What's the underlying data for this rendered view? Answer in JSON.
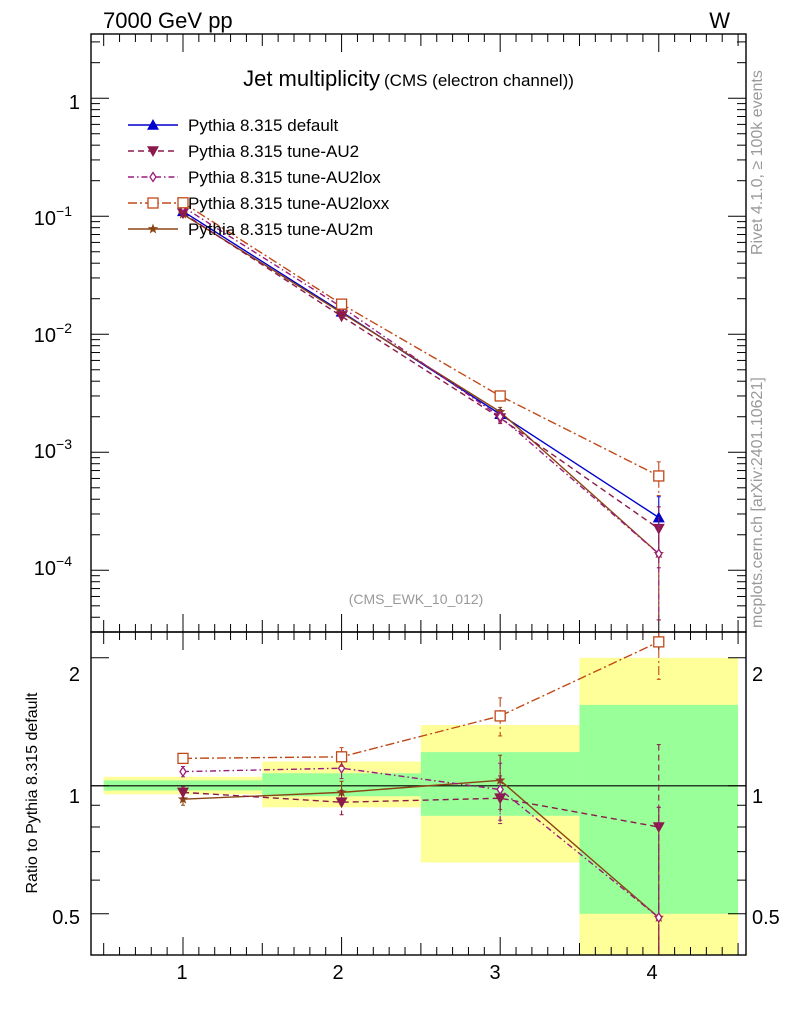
{
  "header": {
    "energy_label": "7000 GeV pp",
    "process_label": "W",
    "rivet_label": "Rivet 4.1.0, ≥ 100k events",
    "mcplots_label": "mcplots.cern.ch [arXiv:2401.10621]",
    "analysis_label": "(CMS_EWK_10_012)"
  },
  "chart_data": {
    "type": "line",
    "title": "Jet multiplicity",
    "subtitle": "(CMS (electron channel))",
    "xlabel": "",
    "ylabel": "",
    "ratio_ylabel": "Ratio to Pythia 8.315 default",
    "x": [
      1,
      2,
      3,
      4
    ],
    "xlim": [
      0.42,
      4.55
    ],
    "ylim": [
      3e-05,
      3.5
    ],
    "ratio_ylim": [
      0.4,
      2.3
    ],
    "x_ticks": [
      "1",
      "2",
      "3",
      "4"
    ],
    "y_ticks": [
      {
        "base": "1",
        "exp": ""
      },
      {
        "base": "10",
        "exp": "−1"
      },
      {
        "base": "10",
        "exp": "−2"
      },
      {
        "base": "10",
        "exp": "−3"
      },
      {
        "base": "10",
        "exp": "−4"
      }
    ],
    "ratio_ticks": [
      "2",
      "1",
      "0.5"
    ],
    "legend_position": "top-left",
    "series": [
      {
        "name": "Pythia 8.315 default",
        "color": "#0000cc",
        "dash": "solid",
        "marker": "triangle-up",
        "values": [
          0.11,
          0.0155,
          0.0021,
          0.00028
        ],
        "errors": [
          0.003,
          0.0006,
          0.0002,
          0.00014
        ],
        "ratio": [
          1.0,
          1.0,
          1.0,
          1.0
        ],
        "ratio_errors": [
          0,
          0,
          0,
          0
        ]
      },
      {
        "name": "Pythia 8.315 tune-AU2",
        "color": "#8b1a4b",
        "dash": "dashed",
        "marker": "triangle-down",
        "values": [
          0.106,
          0.0142,
          0.00195,
          0.000225
        ],
        "errors": [
          0.003,
          0.0006,
          0.0002,
          0.00012
        ],
        "ratio": [
          0.965,
          0.915,
          0.935,
          0.8
        ],
        "ratio_errors": [
          0.03,
          0.06,
          0.12,
          0.45
        ]
      },
      {
        "name": "Pythia 8.315 tune-AU2lox",
        "color": "#9b1c7c",
        "dash": "dashdot",
        "marker": "diamond",
        "values": [
          0.12,
          0.017,
          0.002,
          0.000138
        ],
        "errors": [
          0.003,
          0.0006,
          0.0002,
          0.0001
        ],
        "ratio": [
          1.08,
          1.1,
          0.98,
          0.49
        ],
        "ratio_errors": [
          0.03,
          0.06,
          0.15,
          0.4
        ]
      },
      {
        "name": "Pythia 8.315 tune-AU2loxx",
        "color": "#c04818",
        "dash": "dashdotlong",
        "marker": "square",
        "values": [
          0.13,
          0.018,
          0.003,
          0.00063
        ],
        "errors": [
          0.004,
          0.0007,
          0.00025,
          0.0002
        ],
        "ratio": [
          1.16,
          1.17,
          1.46,
          2.18
        ],
        "ratio_errors": [
          0.03,
          0.06,
          0.15,
          0.4
        ]
      },
      {
        "name": "Pythia 8.315 tune-AU2m",
        "color": "#8b4513",
        "dash": "solid",
        "marker": "star",
        "values": [
          0.104,
          0.0152,
          0.0022,
          0.000138
        ],
        "errors": [
          0.003,
          0.0006,
          0.0002,
          0.0001
        ],
        "ratio": [
          0.93,
          0.965,
          1.03,
          0.49
        ],
        "ratio_errors": [
          0.03,
          0.06,
          0.15,
          0.4
        ]
      }
    ],
    "ratio_bands": [
      {
        "x_range": [
          0.5,
          1.5
        ],
        "green": [
          0.975,
          1.03
        ],
        "yellow": [
          0.955,
          1.05
        ]
      },
      {
        "x_range": [
          1.5,
          2.5
        ],
        "green": [
          0.945,
          1.07
        ],
        "yellow": [
          0.89,
          1.14
        ]
      },
      {
        "x_range": [
          2.5,
          3.5
        ],
        "green": [
          0.85,
          1.2
        ],
        "yellow": [
          0.66,
          1.39
        ]
      },
      {
        "x_range": [
          3.5,
          4.5
        ],
        "green": [
          0.5,
          1.55
        ],
        "yellow": [
          0.3,
          2.0
        ]
      }
    ],
    "colors": {
      "band_green": "#99ff99",
      "band_yellow": "#ffff99",
      "axis": "#000000",
      "muted_text": "#999999"
    }
  }
}
